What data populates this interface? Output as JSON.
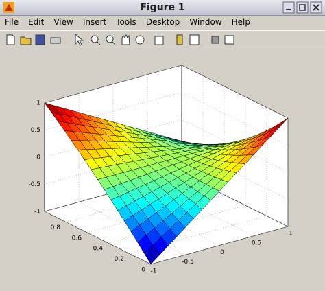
{
  "window": {
    "title": "Figure 1"
  },
  "menu": [
    "File",
    "Edit",
    "View",
    "Insert",
    "Tools",
    "Desktop",
    "Window",
    "Help"
  ],
  "axes": {
    "z_ticks": [
      "1",
      "0.5",
      "0",
      "-0.5",
      "-1"
    ],
    "y_ticks": [
      "0.8",
      "0.6",
      "0.4",
      "0.2",
      "0"
    ],
    "x_ticks": [
      "-1",
      "-0.5",
      "0",
      "0.5",
      "1"
    ]
  }
}
